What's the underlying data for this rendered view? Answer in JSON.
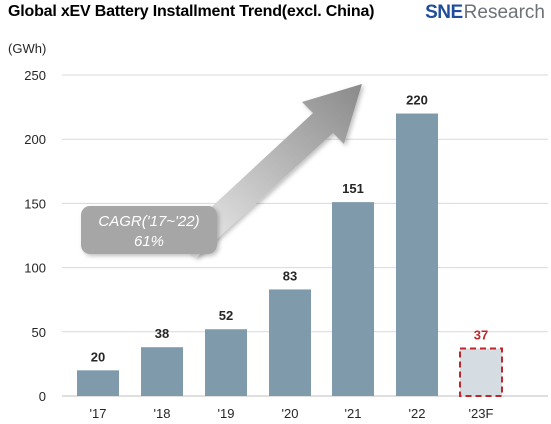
{
  "header": {
    "brand_mark": "SNE",
    "brand_word": "Research"
  },
  "chart_data": {
    "type": "bar",
    "title": "Global xEV Battery Installment Trend(excl. China)",
    "ylabel": "(GWh)",
    "xlabel": "",
    "categories": [
      "'17",
      "'18",
      "'19",
      "'20",
      "'21",
      "'22",
      "'23F"
    ],
    "values": [
      20,
      38,
      52,
      83,
      151,
      220,
      37
    ],
    "data_labels": [
      "20",
      "38",
      "52",
      "83",
      "151",
      "220",
      "37"
    ],
    "forecast_index": 6,
    "ylim": [
      0,
      250
    ],
    "yticks": [
      0,
      50,
      100,
      150,
      200,
      250
    ],
    "grid": true,
    "legend": "none",
    "annotation": {
      "text_line1": "CAGR('17~'22)",
      "text_line2": "61%"
    },
    "colors": {
      "bar": "#7f9aab",
      "forecast_fill": "#d5dde3",
      "forecast_border": "#c0272d",
      "forecast_label": "#c0272d",
      "grid": "#d9d9d9",
      "label": "#262626",
      "annotation_box": "#a6a6a6",
      "arrow": "#8c8c8c"
    }
  }
}
